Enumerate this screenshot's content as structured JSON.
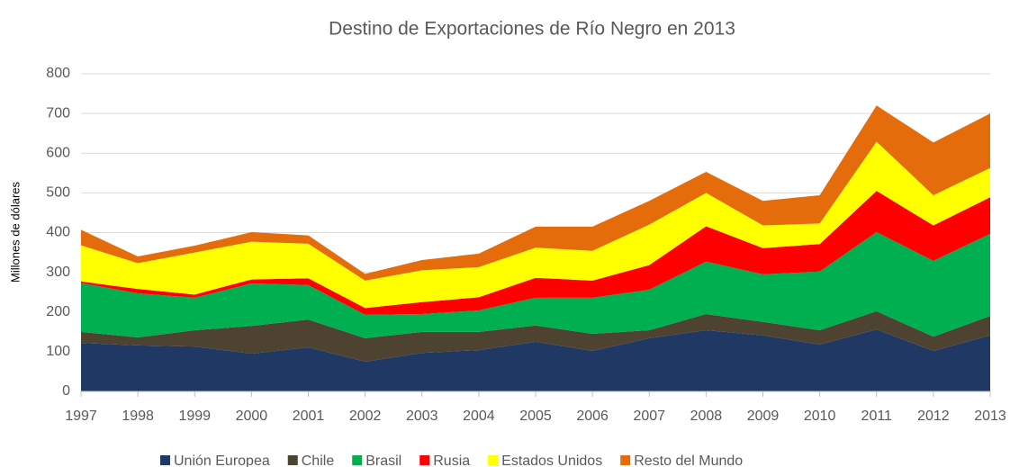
{
  "chart_data": {
    "type": "stacked-area",
    "title": "Destino de Exportaciones de Río Negro en 2013",
    "y_label": "Millones de dólares",
    "categories": [
      "1997",
      "1998",
      "1999",
      "2000",
      "2001",
      "2002",
      "2003",
      "2004",
      "2005",
      "2006",
      "2007",
      "2008",
      "2009",
      "2010",
      "2011",
      "2012",
      "2013"
    ],
    "series": [
      {
        "name": "Unión Europea",
        "color": "#1f3864",
        "values": [
          122,
          116,
          113,
          95,
          111,
          75,
          97,
          104,
          125,
          102,
          134,
          154,
          141,
          118,
          156,
          102,
          141
        ]
      },
      {
        "name": "Chile",
        "color": "#4d4330",
        "values": [
          28,
          20,
          41,
          70,
          70,
          59,
          53,
          46,
          41,
          43,
          20,
          41,
          34,
          36,
          46,
          36,
          49
        ]
      },
      {
        "name": "Brasil",
        "color": "#00b050",
        "values": [
          123,
          111,
          82,
          107,
          87,
          59,
          45,
          54,
          70,
          91,
          102,
          132,
          120,
          148,
          199,
          191,
          207
        ]
      },
      {
        "name": "Rusia",
        "color": "#ff0000",
        "values": [
          4,
          11,
          8,
          10,
          17,
          17,
          30,
          33,
          50,
          43,
          62,
          89,
          66,
          69,
          104,
          89,
          92
        ]
      },
      {
        "name": "Estados Unidos",
        "color": "#ffff00",
        "values": [
          91,
          65,
          106,
          95,
          87,
          69,
          80,
          76,
          76,
          75,
          102,
          84,
          57,
          52,
          124,
          76,
          74
        ]
      },
      {
        "name": "Resto del Mundo",
        "color": "#e46c0a",
        "values": [
          39,
          17,
          17,
          24,
          21,
          17,
          26,
          34,
          53,
          61,
          60,
          53,
          62,
          71,
          91,
          133,
          137
        ]
      }
    ],
    "ylim": [
      0,
      800
    ],
    "yticks": [
      0,
      100,
      200,
      300,
      400,
      500,
      600,
      700,
      800
    ],
    "grid": true,
    "legend": "bottom"
  }
}
